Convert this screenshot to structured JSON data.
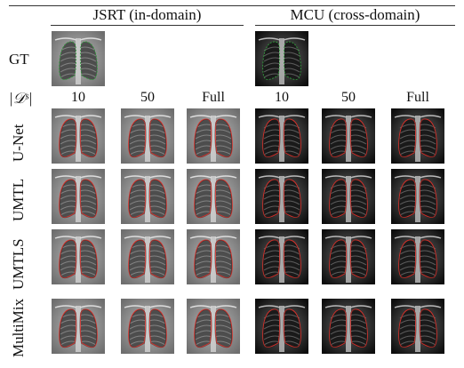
{
  "header": {
    "jsrt_title": "JSRT (in-domain)",
    "mcu_title": "MCU (cross-domain)"
  },
  "columns": {
    "size_label": "|𝒟ˢ|",
    "jsrt": [
      "10",
      "50",
      "Full"
    ],
    "mcu": [
      "10",
      "50",
      "Full"
    ]
  },
  "rows": {
    "gt": "GT",
    "methods": [
      "U-Net",
      "UMTL",
      "UMTLS",
      "MultiMix"
    ]
  },
  "colors": {
    "gt_contour": "#2f9a3a",
    "pred_contour": "#d9302a",
    "jsrt_bg": "#8a8a8a",
    "mcu_bg": "#1c1c1c"
  }
}
